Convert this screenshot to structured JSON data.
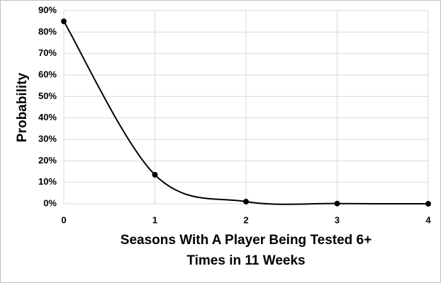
{
  "chart_data": {
    "type": "line",
    "x": [
      0,
      1,
      2,
      3,
      4
    ],
    "series": [
      {
        "color": "#000000",
        "values": [
          85,
          13.5,
          1,
          0.1,
          0
        ]
      }
    ],
    "xlim": [
      0,
      4
    ],
    "xticks": [
      0,
      1,
      2,
      3,
      4
    ],
    "ylim": [
      0,
      90
    ],
    "yticks": [
      {
        "value": 0,
        "label": "0%"
      },
      {
        "value": 10,
        "label": "10%"
      },
      {
        "value": 20,
        "label": "20%"
      },
      {
        "value": 30,
        "label": "30%"
      },
      {
        "value": 40,
        "label": "40%"
      },
      {
        "value": 50,
        "label": "50%"
      },
      {
        "value": 60,
        "label": "60%"
      },
      {
        "value": 70,
        "label": "70%"
      },
      {
        "value": 80,
        "label": "80%"
      },
      {
        "value": 90,
        "label": "90%"
      }
    ],
    "xlabel": [
      "Seasons With A Player Being Tested 6+",
      "Times in 11 Weeks"
    ],
    "ylabel": "Probability",
    "grid": true,
    "smooth": true
  }
}
